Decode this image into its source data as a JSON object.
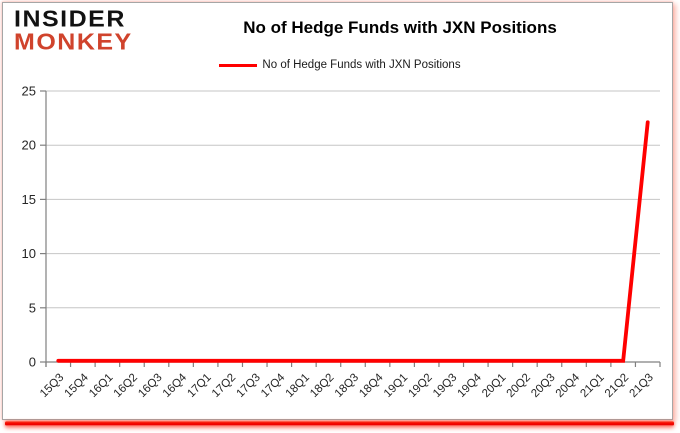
{
  "logo": {
    "line1": "INSIDER",
    "line2": "MONKEY"
  },
  "header": {
    "title": "No of Hedge Funds with JXN Positions"
  },
  "legend": {
    "label": "No of Hedge Funds with JXN Positions"
  },
  "colors": {
    "logo_black": "#121212",
    "logo_red": "#d0432c",
    "series_red": "#ff0000",
    "axis_gray": "#808080",
    "gridline_gray": "#c6c6c6",
    "tick_label_color": "#262626",
    "bottom_bar_red": "#ee0000"
  },
  "chart_data": {
    "type": "line",
    "title": "No of Hedge Funds with JXN Positions",
    "xlabel": "",
    "ylabel": "",
    "categories": [
      "15Q3",
      "15Q4",
      "16Q1",
      "16Q2",
      "16Q3",
      "16Q4",
      "17Q1",
      "17Q2",
      "17Q3",
      "17Q4",
      "18Q1",
      "18Q2",
      "18Q3",
      "18Q4",
      "19Q1",
      "19Q2",
      "19Q3",
      "19Q4",
      "20Q1",
      "20Q2",
      "20Q3",
      "20Q4",
      "21Q1",
      "21Q2",
      "21Q3"
    ],
    "series": [
      {
        "name": "No of Hedge Funds with JXN Positions",
        "color": "#ff0000",
        "values": [
          0,
          0,
          0,
          0,
          0,
          0,
          0,
          0,
          0,
          0,
          0,
          0,
          0,
          0,
          0,
          0,
          0,
          0,
          0,
          0,
          0,
          0,
          0,
          0,
          22
        ]
      }
    ],
    "ylim": [
      0,
      25
    ],
    "yticks": [
      0,
      5,
      10,
      15,
      20,
      25
    ],
    "grid": true,
    "legend_position": "top-center",
    "x_tick_label_rotation_deg": -45
  }
}
